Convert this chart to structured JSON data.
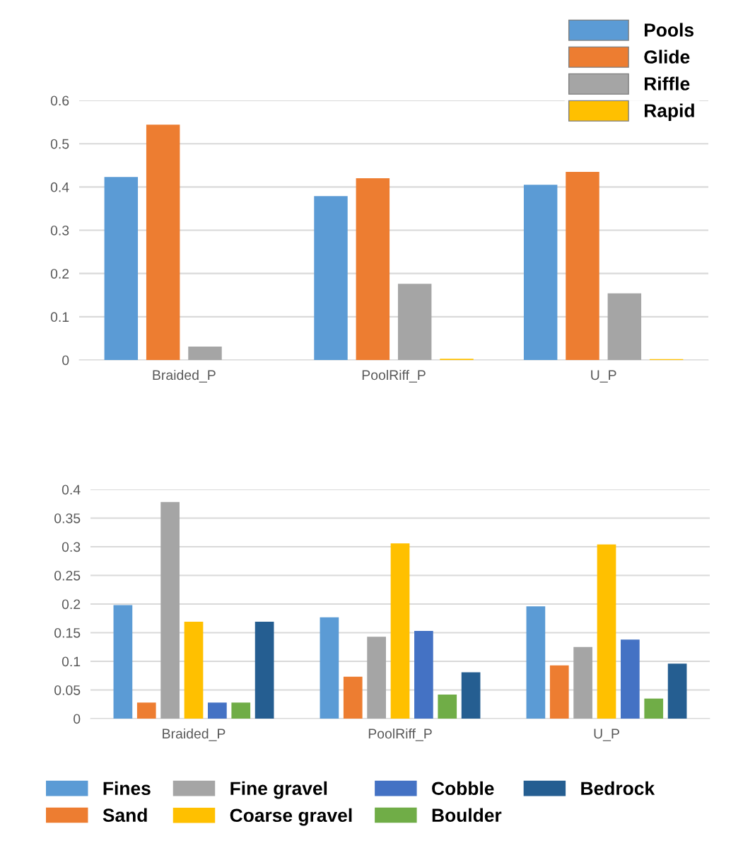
{
  "chart_data": [
    {
      "type": "bar",
      "categories": [
        "Braided_P",
        "PoolRiff_P",
        "U_P"
      ],
      "series": [
        {
          "name": "Pools",
          "color": "#5b9bd5",
          "values": [
            0.423,
            0.379,
            0.405
          ]
        },
        {
          "name": "Glide",
          "color": "#ed7d31",
          "values": [
            0.544,
            0.42,
            0.435
          ]
        },
        {
          "name": "Riffle",
          "color": "#a5a5a5",
          "values": [
            0.031,
            0.176,
            0.154
          ]
        },
        {
          "name": "Rapid",
          "color": "#ffc000",
          "values": [
            0,
            0.003,
            0.002
          ]
        }
      ],
      "ylim": [
        0,
        0.6
      ],
      "yticks": [
        0,
        0.1,
        0.2,
        0.3,
        0.4,
        0.5,
        0.6
      ],
      "grid": "y",
      "legend": "top right"
    },
    {
      "type": "bar",
      "categories": [
        "Braided_P",
        "PoolRiff_P",
        "U_P"
      ],
      "series": [
        {
          "name": "Fines",
          "color": "#5b9bd5",
          "values": [
            0.198,
            0.177,
            0.196
          ]
        },
        {
          "name": "Sand",
          "color": "#ed7d31",
          "values": [
            0.028,
            0.073,
            0.093
          ]
        },
        {
          "name": "Fine gravel",
          "color": "#a5a5a5",
          "values": [
            0.378,
            0.143,
            0.125
          ]
        },
        {
          "name": "Coarse gravel",
          "color": "#ffc000",
          "values": [
            0.169,
            0.306,
            0.304
          ]
        },
        {
          "name": "Cobble",
          "color": "#4472c4",
          "values": [
            0.028,
            0.153,
            0.138
          ]
        },
        {
          "name": "Boulder",
          "color": "#70ad47",
          "values": [
            0.028,
            0.042,
            0.035
          ]
        },
        {
          "name": "Bedrock",
          "color": "#255e91",
          "values": [
            0.169,
            0.081,
            0.096
          ]
        }
      ],
      "ylim": [
        0,
        0.4
      ],
      "yticks": [
        0,
        0.05,
        0.1,
        0.15,
        0.2,
        0.25,
        0.3,
        0.35,
        0.4
      ],
      "grid": "y",
      "legend": "bottom"
    }
  ]
}
